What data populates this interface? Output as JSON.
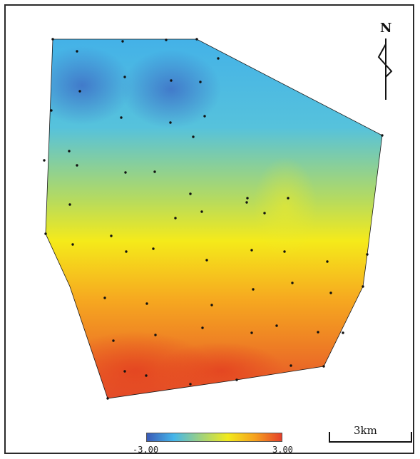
{
  "north_label": "N",
  "scale_bar_label": "3km",
  "colorbar": {
    "min_label": "-3.00",
    "max_label": "3.00",
    "min": -3.0,
    "max": 3.0,
    "colors": [
      "#3a5bb8",
      "#45b6ea",
      "#9fd27e",
      "#f2ea1d",
      "#f6a21e",
      "#e5402a"
    ]
  },
  "boundary_color": "#1a1a1a",
  "point_color": "#111111"
}
